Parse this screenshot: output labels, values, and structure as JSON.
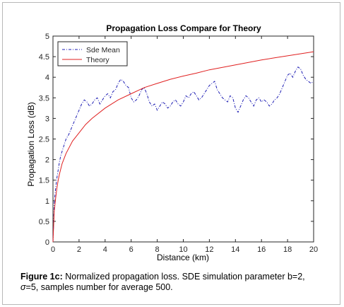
{
  "chart_data": {
    "type": "line",
    "title": "Propagation Loss Compare for Theory",
    "xlabel": "Distance (km)",
    "ylabel": "Propagation Loss (dB)",
    "xlim": [
      0,
      20
    ],
    "ylim": [
      0,
      5
    ],
    "xticks": [
      "0",
      "2",
      "4",
      "6",
      "8",
      "10",
      "12",
      "14",
      "16",
      "18",
      "20"
    ],
    "yticks": [
      "0",
      "0.5",
      "1",
      "1.5",
      "2",
      "2.5",
      "3",
      "3.5",
      "4",
      "4.5",
      "5"
    ],
    "grid": false,
    "legend_position": "top-left",
    "series": [
      {
        "name": "Sde Mean",
        "color": "#1f1fb4",
        "style": "dash-dot",
        "x": [
          0,
          0.1,
          0.2,
          0.3,
          0.4,
          0.5,
          0.6,
          0.7,
          0.8,
          0.9,
          1.0,
          1.2,
          1.4,
          1.6,
          1.8,
          2.0,
          2.2,
          2.4,
          2.6,
          2.8,
          3.0,
          3.2,
          3.4,
          3.6,
          3.8,
          4.0,
          4.2,
          4.4,
          4.6,
          4.8,
          5.0,
          5.2,
          5.4,
          5.6,
          5.8,
          6.0,
          6.2,
          6.4,
          6.6,
          6.8,
          7.0,
          7.2,
          7.4,
          7.6,
          7.8,
          8.0,
          8.2,
          8.4,
          8.6,
          8.8,
          9.0,
          9.2,
          9.4,
          9.6,
          9.8,
          10.0,
          10.2,
          10.4,
          10.6,
          10.8,
          11.0,
          11.2,
          11.4,
          11.6,
          11.8,
          12.0,
          12.2,
          12.4,
          12.6,
          12.8,
          13.0,
          13.2,
          13.4,
          13.6,
          13.8,
          14.0,
          14.2,
          14.4,
          14.6,
          14.8,
          15.0,
          15.2,
          15.4,
          15.6,
          15.8,
          16.0,
          16.2,
          16.4,
          16.6,
          16.8,
          17.0,
          17.2,
          17.4,
          17.6,
          17.8,
          18.0,
          18.2,
          18.4,
          18.6,
          18.8,
          19.0,
          19.2,
          19.4,
          19.6,
          19.8,
          20.0
        ],
        "y": [
          0,
          0.95,
          1.3,
          1.55,
          1.75,
          1.95,
          2.1,
          2.2,
          2.3,
          2.4,
          2.5,
          2.6,
          2.75,
          2.9,
          3.05,
          3.2,
          3.35,
          3.45,
          3.4,
          3.3,
          3.35,
          3.45,
          3.5,
          3.35,
          3.45,
          3.55,
          3.6,
          3.5,
          3.65,
          3.7,
          3.85,
          3.95,
          3.9,
          3.8,
          3.75,
          3.5,
          3.4,
          3.45,
          3.55,
          3.7,
          3.75,
          3.6,
          3.4,
          3.3,
          3.35,
          3.2,
          3.3,
          3.4,
          3.35,
          3.25,
          3.3,
          3.4,
          3.45,
          3.35,
          3.3,
          3.4,
          3.55,
          3.5,
          3.6,
          3.65,
          3.55,
          3.45,
          3.5,
          3.6,
          3.7,
          3.8,
          3.85,
          3.9,
          3.7,
          3.6,
          3.5,
          3.45,
          3.4,
          3.55,
          3.5,
          3.25,
          3.15,
          3.3,
          3.45,
          3.55,
          3.5,
          3.4,
          3.3,
          3.45,
          3.5,
          3.4,
          3.45,
          3.4,
          3.3,
          3.35,
          3.45,
          3.5,
          3.6,
          3.75,
          3.9,
          4.05,
          4.1,
          4.0,
          4.15,
          4.25,
          4.2,
          4.05,
          3.95,
          3.9,
          3.85,
          3.9
        ]
      },
      {
        "name": "Theory",
        "color": "#e02020",
        "style": "solid",
        "x": [
          0,
          0.1,
          0.2,
          0.3,
          0.4,
          0.5,
          0.7,
          1.0,
          1.5,
          2.0,
          2.5,
          3.0,
          4.0,
          5.0,
          6.0,
          7.0,
          8.0,
          9.0,
          10.0,
          11.0,
          12.0,
          13.0,
          14.0,
          15.0,
          16.0,
          17.0,
          18.0,
          19.0,
          20.0
        ],
        "y": [
          0,
          0.75,
          1.05,
          1.3,
          1.5,
          1.65,
          1.9,
          2.15,
          2.45,
          2.65,
          2.85,
          3.0,
          3.25,
          3.45,
          3.6,
          3.75,
          3.85,
          3.95,
          4.03,
          4.1,
          4.18,
          4.24,
          4.3,
          4.36,
          4.42,
          4.47,
          4.52,
          4.57,
          4.62
        ]
      }
    ]
  },
  "caption": {
    "label": "Figure 1c:",
    "text": " Normalized propagation loss. SDE simulation parameter b=2,",
    "sigma": "σ",
    "text2": "=5, samples number for average 500."
  }
}
